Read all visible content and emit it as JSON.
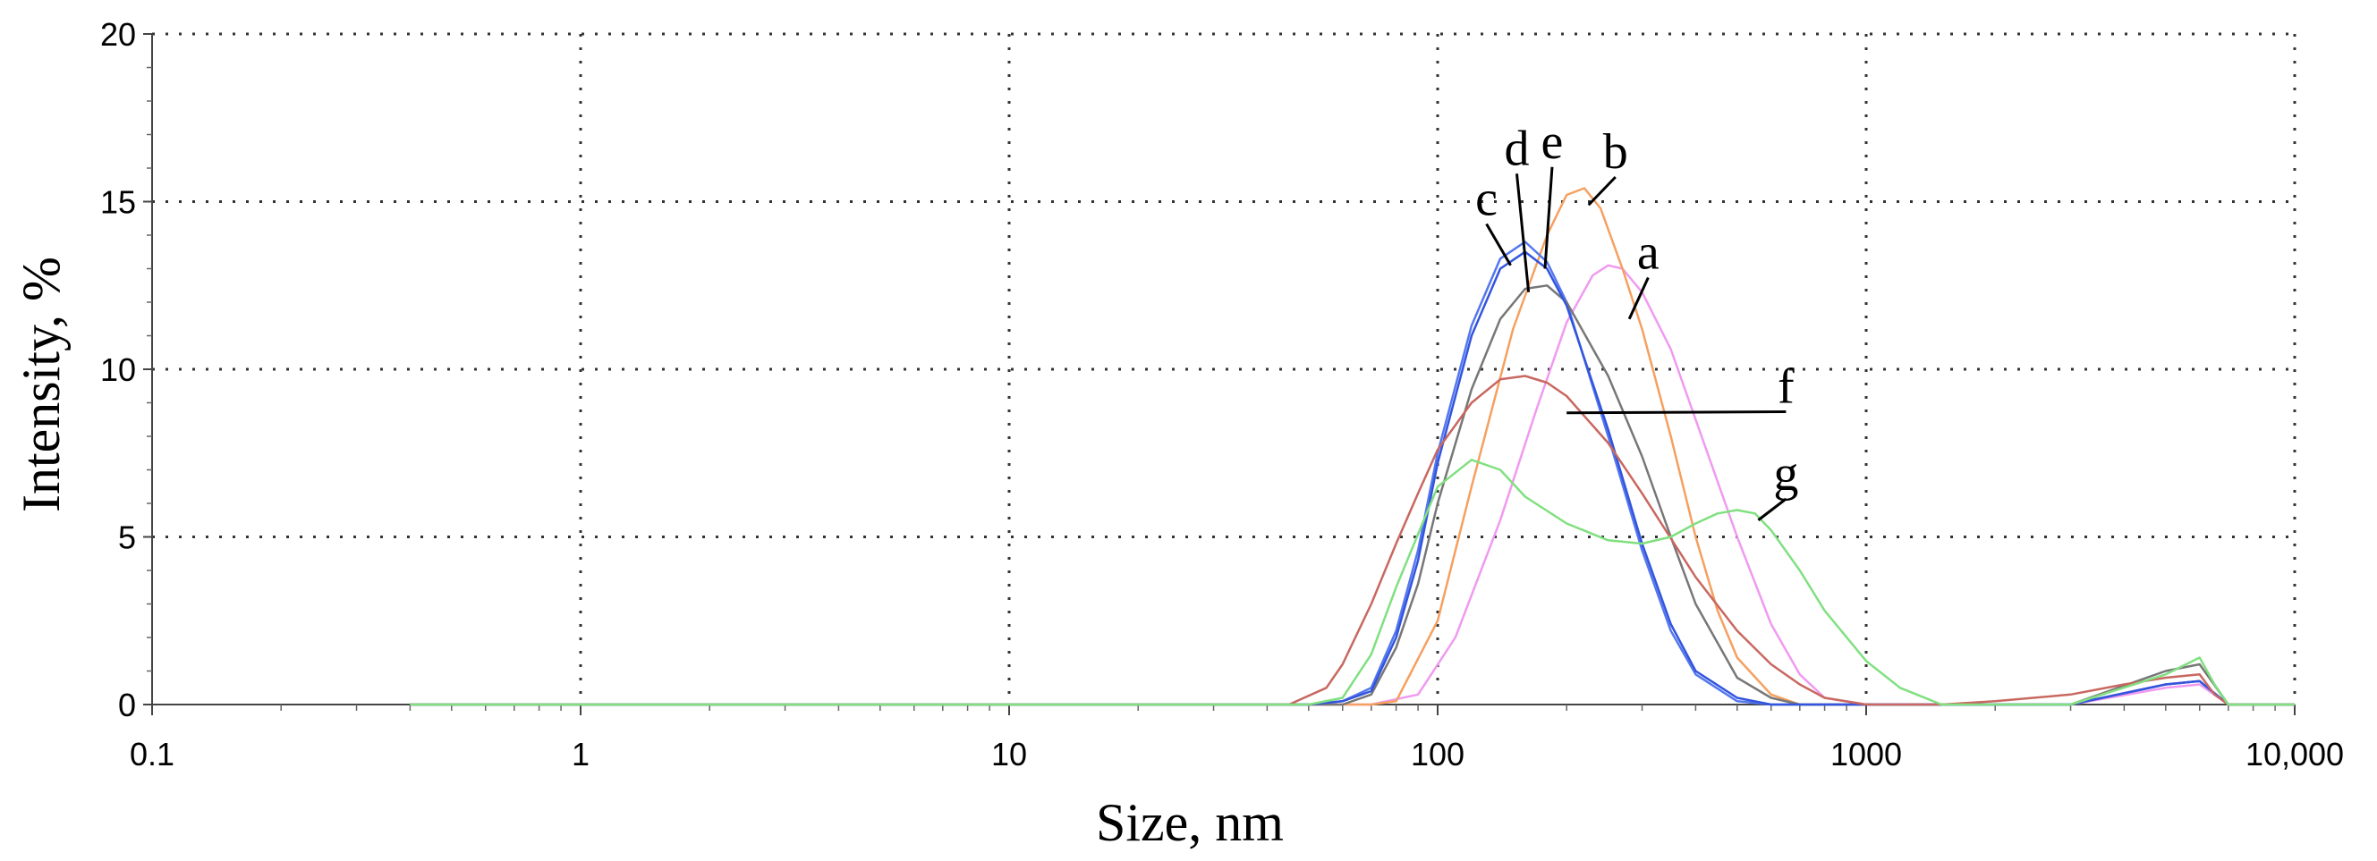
{
  "chart_data": {
    "type": "line",
    "title": "",
    "xlabel": "Size, nm",
    "ylabel": "Intensity, %",
    "xscale": "log",
    "xlim": [
      0.1,
      10000
    ],
    "ylim": [
      0,
      20
    ],
    "grid": true,
    "legend": "inline labels",
    "x_tick_labels": [
      "0.1",
      "1",
      "10",
      "100",
      "1000",
      "10,000"
    ],
    "x_tick_values": [
      0.1,
      1,
      10,
      100,
      1000,
      10000
    ],
    "y_tick_labels": [
      "0",
      "5",
      "10",
      "15",
      "20"
    ],
    "y_tick_values": [
      0,
      5,
      10,
      15,
      20
    ],
    "series": [
      {
        "name": "a",
        "color": "#f09af0",
        "label_at": [
          310,
          13.0
        ],
        "leader_to": [
          280,
          11.5
        ],
        "x": [
          0.4,
          50,
          70,
          90,
          110,
          140,
          170,
          200,
          230,
          250,
          270,
          300,
          350,
          400,
          500,
          600,
          700,
          800,
          1000,
          1500,
          3000,
          5000,
          6000,
          7000,
          10000
        ],
        "y": [
          0,
          0,
          0,
          0.3,
          2.0,
          5.5,
          8.8,
          11.4,
          12.8,
          13.1,
          13.0,
          12.3,
          10.6,
          8.5,
          5.0,
          2.4,
          0.9,
          0.2,
          0,
          0,
          0,
          0.5,
          0.6,
          0,
          0
        ]
      },
      {
        "name": "b",
        "color": "#f5a060",
        "label_at": [
          260,
          16.0
        ],
        "leader_to": [
          225,
          14.9
        ],
        "x": [
          0.4,
          50,
          70,
          80,
          100,
          120,
          150,
          180,
          200,
          220,
          240,
          270,
          300,
          350,
          400,
          450,
          500,
          600,
          700,
          1000,
          3000,
          5000,
          6000,
          7000,
          10000
        ],
        "y": [
          0,
          0,
          0,
          0.1,
          2.5,
          6.5,
          11.2,
          14.0,
          15.2,
          15.4,
          14.8,
          13.0,
          11.2,
          8.0,
          5.0,
          2.8,
          1.4,
          0.3,
          0,
          0,
          0,
          0.6,
          0.7,
          0,
          0
        ]
      },
      {
        "name": "c",
        "color": "#5577ee",
        "label_at": [
          130,
          14.6
        ],
        "leader_to": [
          148,
          13.1
        ],
        "x": [
          0.4,
          50,
          60,
          70,
          80,
          90,
          100,
          120,
          140,
          160,
          180,
          200,
          250,
          300,
          350,
          400,
          500,
          600,
          1000,
          3000,
          5000,
          6000,
          7000,
          10000
        ],
        "y": [
          0,
          0,
          0.1,
          0.5,
          2.2,
          4.6,
          7.5,
          11.3,
          13.3,
          13.8,
          13.2,
          12.0,
          8.0,
          4.6,
          2.2,
          0.9,
          0.1,
          0,
          0,
          0,
          0.6,
          0.7,
          0,
          0
        ]
      },
      {
        "name": "d",
        "color": "#777777",
        "label_at": [
          153,
          16.1
        ],
        "leader_to": [
          163,
          12.3
        ],
        "x": [
          0.4,
          50,
          60,
          70,
          80,
          90,
          100,
          120,
          140,
          160,
          180,
          200,
          250,
          300,
          350,
          400,
          500,
          600,
          700,
          1000,
          3000,
          5000,
          6000,
          7000,
          10000
        ],
        "y": [
          0,
          0,
          0,
          0.3,
          1.7,
          3.6,
          6.0,
          9.4,
          11.5,
          12.4,
          12.5,
          12.0,
          9.8,
          7.4,
          5.0,
          3.0,
          0.8,
          0.2,
          0,
          0,
          0,
          1.0,
          1.2,
          0,
          0
        ]
      },
      {
        "name": "e",
        "color": "#3355dd",
        "label_at": [
          185,
          16.3
        ],
        "leader_to": [
          178,
          13.0
        ],
        "x": [
          0.4,
          50,
          60,
          70,
          80,
          90,
          100,
          120,
          140,
          160,
          180,
          200,
          250,
          300,
          350,
          400,
          500,
          600,
          1000,
          3000,
          5000,
          6000,
          7000,
          10000
        ],
        "y": [
          0,
          0,
          0.1,
          0.4,
          2.0,
          4.3,
          7.2,
          11.0,
          13.0,
          13.5,
          13.0,
          11.9,
          8.2,
          4.8,
          2.4,
          1.0,
          0.2,
          0,
          0,
          0,
          0.6,
          0.7,
          0,
          0
        ]
      },
      {
        "name": "f",
        "color": "#c86860",
        "label_at": [
          650,
          9.0
        ],
        "leader_to": [
          200,
          8.7
        ],
        "x": [
          0.4,
          45,
          55,
          60,
          70,
          80,
          90,
          100,
          120,
          140,
          160,
          180,
          200,
          250,
          300,
          400,
          500,
          600,
          700,
          800,
          1000,
          1500,
          2000,
          3000,
          4000,
          5000,
          6000,
          6500,
          7000,
          10000
        ],
        "y": [
          0,
          0,
          0.5,
          1.2,
          3.0,
          4.8,
          6.3,
          7.6,
          9.0,
          9.7,
          9.8,
          9.6,
          9.2,
          7.8,
          6.3,
          3.8,
          2.2,
          1.2,
          0.6,
          0.2,
          0,
          0,
          0.1,
          0.3,
          0.6,
          0.8,
          0.9,
          0.3,
          0,
          0
        ]
      },
      {
        "name": "g",
        "color": "#80e080",
        "label_at": [
          650,
          6.4
        ],
        "leader_to": [
          560,
          5.5
        ],
        "x": [
          0.4,
          50,
          60,
          70,
          80,
          100,
          120,
          140,
          160,
          200,
          250,
          300,
          350,
          400,
          450,
          500,
          550,
          600,
          700,
          800,
          1000,
          1200,
          1500,
          3000,
          5000,
          6000,
          6500,
          7000,
          10000
        ],
        "y": [
          0,
          0,
          0.2,
          1.5,
          3.5,
          6.5,
          7.3,
          7.0,
          6.2,
          5.4,
          4.9,
          4.8,
          5.0,
          5.4,
          5.7,
          5.8,
          5.7,
          5.2,
          4.0,
          2.8,
          1.3,
          0.5,
          0,
          0,
          0.9,
          1.4,
          0.6,
          0,
          0
        ]
      }
    ]
  }
}
